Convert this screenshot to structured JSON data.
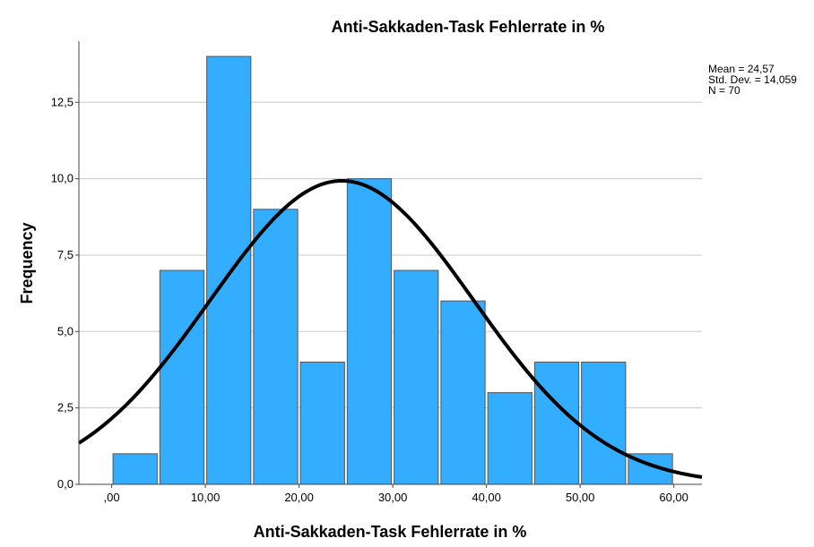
{
  "chart_data": {
    "type": "bar",
    "title": "Anti-Sakkaden-Task Fehlerrate in %",
    "xlabel": "Anti-Sakkaden-Task Fehlerrate in %",
    "ylabel": "Frequency",
    "bin_edges": [
      0,
      5,
      10,
      15,
      20,
      25,
      30,
      35,
      40,
      45,
      50,
      55,
      60
    ],
    "values": [
      1,
      7,
      14,
      9,
      4,
      10,
      7,
      6,
      3,
      4,
      4,
      1
    ],
    "xlim": [
      -3.5,
      63
    ],
    "ylim": [
      0,
      14.5
    ],
    "x_ticks": [
      0,
      10,
      20,
      30,
      40,
      50,
      60
    ],
    "x_tick_labels": [
      ",00",
      "10,00",
      "20,00",
      "30,00",
      "40,00",
      "50,00",
      "60,00"
    ],
    "y_ticks": [
      0,
      2.5,
      5,
      7.5,
      10,
      12.5
    ],
    "y_tick_labels": [
      "0,0",
      "2,5",
      "5,0",
      "7,5",
      "10,0",
      "12,5"
    ],
    "grid": "horizontal",
    "bar_color": "#33adff",
    "bar_edge_color": "#555555",
    "curve_color": "#000000",
    "normal_curve": {
      "mean": 24.57,
      "std": 14.059,
      "n": 70,
      "bin_width": 5
    },
    "stats_lines": [
      "Mean = 24,57",
      "Std. Dev. = 14,059",
      "N = 70"
    ],
    "legend": "top-right"
  }
}
